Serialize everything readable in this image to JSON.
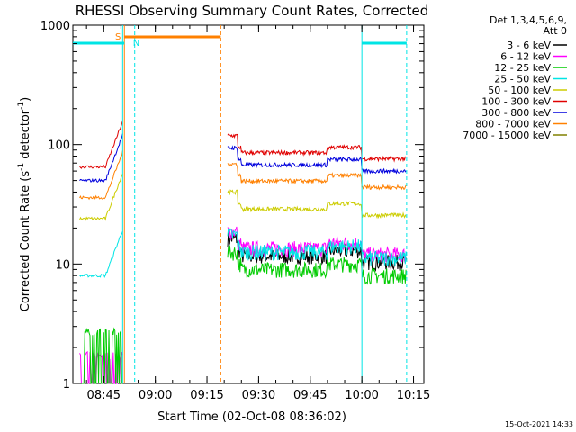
{
  "chart_data": {
    "type": "line",
    "title": "RHESSI Observing Summary Count Rates, Corrected",
    "xlabel": "Start Time (02-Oct-08 08:36:02)",
    "ylabel_main": "Corrected Count Rate (s",
    "ylabel_sup1": "-1",
    "ylabel_mid": " detector",
    "ylabel_sup2": "-1",
    "ylabel_end": ")",
    "y_scale": "log",
    "ylim": [
      1,
      1000
    ],
    "xlim": [
      "08:36:02",
      "10:18:00"
    ],
    "x_ticks": [
      "08:45",
      "09:00",
      "09:15",
      "09:30",
      "09:45",
      "10:00",
      "10:15"
    ],
    "y_ticks": [
      "1",
      "10",
      "100",
      "1000"
    ],
    "legend_placement": "top-right",
    "legend_header": [
      "Det 1,3,4,5,6,9,",
      "Att 0"
    ],
    "footer_date": "15-Oct-2021 14:33",
    "series": [
      {
        "name": "3 - 6 keV",
        "color": "#000000",
        "pre": 1.0,
        "post": 13
      },
      {
        "name": "6 - 12 keV",
        "color": "#ff00ff",
        "pre": 1.6,
        "post": 15
      },
      {
        "name": "12 - 25 keV",
        "color": "#00cc00",
        "pre": 2.5,
        "post": 10
      },
      {
        "name": "25 - 50 keV",
        "color": "#00e5e5",
        "pre": 8,
        "post": 14
      },
      {
        "name": "50 - 100 keV",
        "color": "#cccc00",
        "pre": 24,
        "post": 32
      },
      {
        "name": "100 - 300 keV",
        "color": "#e00000",
        "pre": 65,
        "post": 95
      },
      {
        "name": "300 - 800 keV",
        "color": "#0000dd",
        "pre": 50,
        "post": 75
      },
      {
        "name": "800 - 7000 keV",
        "color": "#ff8000",
        "pre": 36,
        "post": 55
      },
      {
        "name": "7000 - 15000 keV",
        "color": "#808000",
        "pre": 1.0,
        "post": 1.0
      }
    ],
    "markers": [
      {
        "label": "S",
        "color": "#ff8000"
      },
      {
        "label": "N",
        "color": "#00e5e5"
      }
    ]
  }
}
